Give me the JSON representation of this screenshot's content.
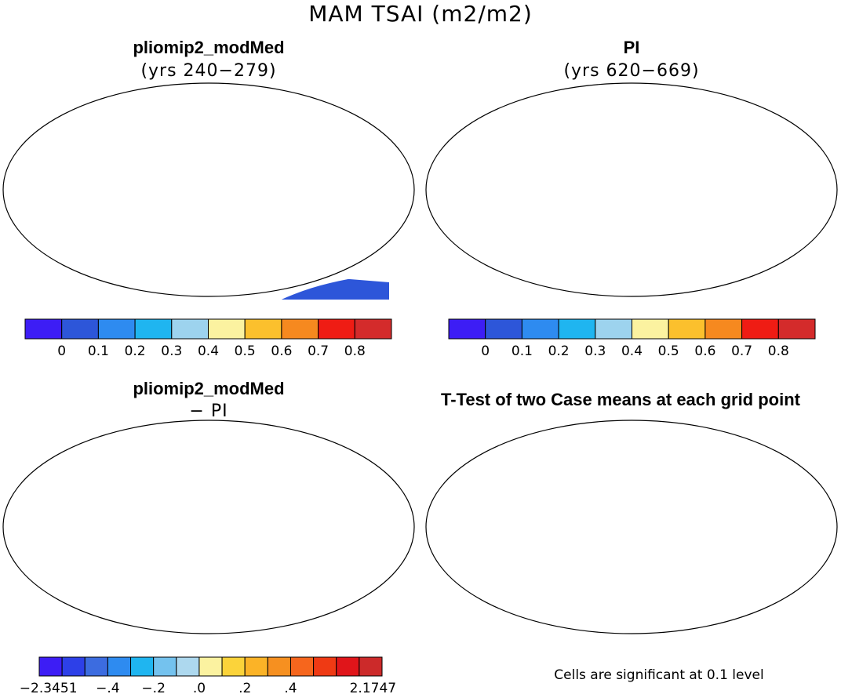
{
  "figure": {
    "title": "MAM TSAI (m2/m2)"
  },
  "panels": [
    {
      "title": "pliomip2_modMed",
      "subtitle": "(yrs 240−279)"
    },
    {
      "title": "PI",
      "subtitle": "(yrs 620−669)"
    },
    {
      "title": "pliomip2_modMed",
      "subtitle": "− PI"
    },
    {
      "title": "T-Test of two Case means at each grid point",
      "subtitle": ""
    }
  ],
  "colorbars": {
    "absolute": {
      "colors": [
        "#3d1df5",
        "#2d56d9",
        "#2e8bf0",
        "#1fb5f0",
        "#9dd3ee",
        "#fbf2a0",
        "#fbc02d",
        "#f6891f",
        "#ef1c14",
        "#d42b2b"
      ],
      "labels": [
        "0",
        "0.1",
        "0.2",
        "0.3",
        "0.4",
        "0.5",
        "0.6",
        "0.7",
        "0.8"
      ]
    },
    "difference": {
      "colors": [
        "#3d1df5",
        "#2d40e8",
        "#3c6ce0",
        "#2e8bf0",
        "#1fb5f0",
        "#74c2ee",
        "#add8ee",
        "#fbf2a0",
        "#fbd33a",
        "#fbb327",
        "#f69020",
        "#f6661d",
        "#ef3a14",
        "#e0151a",
        "#cc2a2a"
      ],
      "labels": [
        "−2.3451",
        "−.4",
        "−.2",
        ".0",
        ".2",
        ".4",
        "2.1747"
      ]
    }
  },
  "footnote": "Cells are significant at 0.1 level"
}
